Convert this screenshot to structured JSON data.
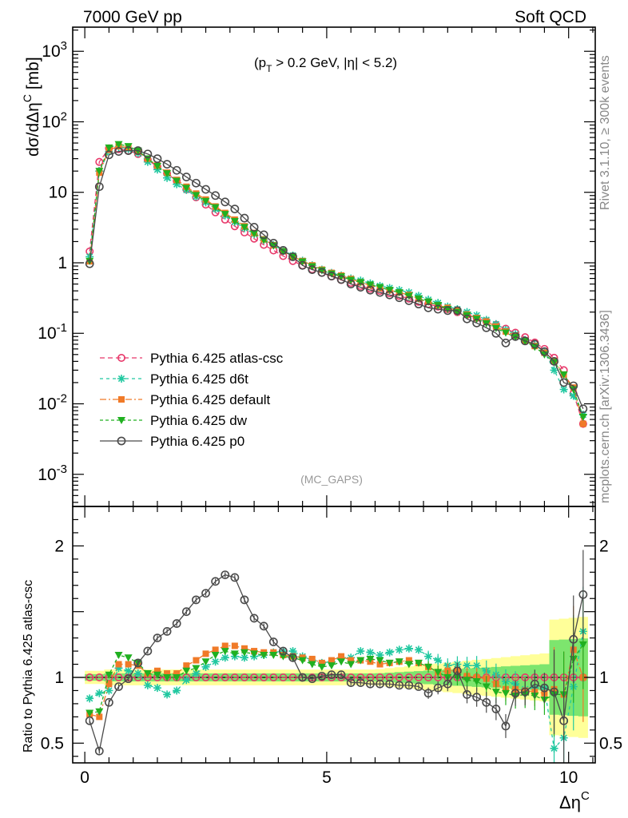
{
  "header": {
    "left": "7000 GeV pp",
    "right": "Soft QCD",
    "cuts_main": "(p",
    "cuts_sub": "T",
    "cuts_rest": " > 0.2 GeV, |η| < 5.2)",
    "analysis": "(MC_GAPS)",
    "side_top": "Rivet 3.1.10, ≥ 300k events",
    "side_bottom": "mcplots.cern.ch [arXiv:1306.3436]"
  },
  "colors": {
    "atlas_csc": "#e8386a",
    "d6t": "#20c8a0",
    "default": "#f07a28",
    "dw": "#20b020",
    "p0": "#4a4a4a",
    "band_yellow": "#ffff99",
    "band_green": "#66e066"
  },
  "chart_data": {
    "type": "line",
    "x_label": "Δη",
    "x_label_sup": "C",
    "xlim": [
      -0.25,
      10.55
    ],
    "x_ticks": [
      "0",
      "5",
      "10"
    ],
    "main": {
      "ylabel": "dσ/dΔη",
      "ylabel_sup": "C",
      "ylabel_unit": " [mb]",
      "yscale": "log",
      "ylim": [
        0.00035,
        2200
      ],
      "y_ticks": [
        "10",
        "10",
        "10",
        "1",
        "10",
        "10",
        "10"
      ],
      "y_tick_exps": [
        "3",
        "2",
        "",
        "",
        "-1",
        "-2",
        "-3"
      ]
    },
    "ratio": {
      "ylabel": "Ratio to Pythia 6.425 atlas-csc",
      "ylim": [
        0.35,
        2.3
      ],
      "y_ticks": [
        "0.5",
        "1",
        "2"
      ]
    },
    "x": [
      0.1,
      0.3,
      0.5,
      0.7,
      0.9,
      1.1,
      1.3,
      1.5,
      1.7,
      1.9,
      2.1,
      2.3,
      2.5,
      2.7,
      2.9,
      3.1,
      3.3,
      3.5,
      3.7,
      3.9,
      4.1,
      4.3,
      4.5,
      4.7,
      4.9,
      5.1,
      5.3,
      5.5,
      5.7,
      5.9,
      6.1,
      6.3,
      6.5,
      6.7,
      6.9,
      7.1,
      7.3,
      7.5,
      7.7,
      7.9,
      8.1,
      8.3,
      8.5,
      8.7,
      8.9,
      9.1,
      9.3,
      9.5,
      9.7,
      9.9,
      10.1,
      10.3
    ],
    "series": [
      {
        "name": "Pythia 6.425 atlas-csc",
        "key": "atlas_csc",
        "marker": "circle",
        "dash": "6,4",
        "values": [
          1.45,
          27,
          42,
          41,
          39,
          35,
          29,
          23,
          18.5,
          14.5,
          11,
          8.5,
          6.7,
          5.2,
          4.1,
          3.3,
          2.7,
          2.2,
          1.8,
          1.5,
          1.25,
          1.06,
          0.92,
          0.81,
          0.72,
          0.64,
          0.57,
          0.52,
          0.47,
          0.43,
          0.4,
          0.37,
          0.34,
          0.31,
          0.28,
          0.26,
          0.24,
          0.22,
          0.2,
          0.183,
          0.165,
          0.148,
          0.132,
          0.116,
          0.102,
          0.088,
          0.074,
          0.06,
          0.045,
          0.03,
          0.014,
          0.0052
        ]
      },
      {
        "name": "Pythia 6.425 d6t",
        "key": "d6t",
        "marker": "star",
        "dash": "4,4",
        "values": [
          1.22,
          20,
          38,
          44,
          41,
          36,
          27,
          21,
          16,
          13,
          10.8,
          8.7,
          7.2,
          5.8,
          4.7,
          3.8,
          3.1,
          2.55,
          2.1,
          1.78,
          1.5,
          1.27,
          1.07,
          0.92,
          0.8,
          0.72,
          0.66,
          0.6,
          0.56,
          0.51,
          0.47,
          0.44,
          0.41,
          0.38,
          0.34,
          0.3,
          0.27,
          0.24,
          0.22,
          0.2,
          0.18,
          0.155,
          0.135,
          0.112,
          0.097,
          0.08,
          0.068,
          0.055,
          0.03,
          0.016,
          0.013,
          0.007
        ]
      },
      {
        "name": "Pythia 6.425 default",
        "key": "default",
        "marker": "square",
        "dash": "8,3,2,3",
        "values": [
          1.05,
          19,
          40,
          45,
          43,
          38,
          30,
          24,
          19,
          15,
          12,
          9.6,
          7.9,
          6.3,
          5.1,
          4.1,
          3.3,
          2.65,
          2.15,
          1.78,
          1.46,
          1.23,
          1.06,
          0.92,
          0.8,
          0.72,
          0.66,
          0.59,
          0.53,
          0.48,
          0.44,
          0.41,
          0.38,
          0.35,
          0.31,
          0.28,
          0.25,
          0.23,
          0.21,
          0.185,
          0.165,
          0.147,
          0.125,
          0.106,
          0.093,
          0.079,
          0.066,
          0.053,
          0.041,
          0.026,
          0.017,
          0.0052
        ]
      },
      {
        "name": "Pythia 6.425 dw",
        "key": "dw",
        "marker": "tri",
        "dash": "4,3",
        "values": [
          1.06,
          20,
          43,
          48,
          45,
          39,
          30,
          23.5,
          18.5,
          14.5,
          11.5,
          9.1,
          7.5,
          6.1,
          4.9,
          3.9,
          3.2,
          2.6,
          2.1,
          1.75,
          1.45,
          1.22,
          1.04,
          0.89,
          0.78,
          0.7,
          0.64,
          0.57,
          0.53,
          0.49,
          0.45,
          0.41,
          0.38,
          0.34,
          0.31,
          0.28,
          0.25,
          0.22,
          0.2,
          0.18,
          0.16,
          0.138,
          0.118,
          0.102,
          0.088,
          0.077,
          0.064,
          0.05,
          0.039,
          0.026,
          0.016,
          0.0065
        ]
      },
      {
        "name": "Pythia 6.425 p0",
        "key": "p0",
        "marker": "ocircle",
        "dash": "",
        "values": [
          0.97,
          12,
          34,
          38,
          39,
          39,
          35,
          30,
          25,
          20.5,
          16.5,
          13.5,
          11,
          9,
          7.3,
          5.8,
          4.3,
          3.2,
          2.5,
          1.9,
          1.5,
          1.22,
          0.92,
          0.8,
          0.73,
          0.65,
          0.58,
          0.5,
          0.45,
          0.41,
          0.38,
          0.35,
          0.32,
          0.29,
          0.26,
          0.23,
          0.22,
          0.21,
          0.21,
          0.16,
          0.14,
          0.12,
          0.1,
          0.073,
          0.09,
          0.078,
          0.07,
          0.055,
          0.04,
          0.02,
          0.018,
          0.0085
        ]
      }
    ],
    "ratios": {
      "atlas_csc": [
        1,
        1,
        1,
        1,
        1,
        1,
        1,
        1,
        1,
        1,
        1,
        1,
        1,
        1,
        1,
        1,
        1,
        1,
        1,
        1,
        1,
        1,
        1,
        1,
        1,
        1,
        1,
        1,
        1,
        1,
        1,
        1,
        1,
        1,
        1,
        1,
        1,
        1,
        1,
        1,
        1,
        1,
        1,
        1,
        1,
        1,
        1,
        1,
        1,
        1,
        1,
        1
      ],
      "d6t": [
        0.84,
        0.88,
        0.9,
        1.07,
        1.05,
        1.03,
        0.94,
        0.92,
        0.87,
        0.9,
        0.98,
        1.03,
        1.08,
        1.12,
        1.15,
        1.16,
        1.15,
        1.16,
        1.17,
        1.19,
        1.2,
        1.2,
        1.16,
        1.13,
        1.11,
        1.12,
        1.15,
        1.15,
        1.2,
        1.19,
        1.17,
        1.19,
        1.21,
        1.22,
        1.21,
        1.16,
        1.13,
        1.09,
        1.1,
        1.09,
        1.09,
        1.05,
        1.02,
        0.97,
        0.95,
        0.91,
        0.92,
        0.92,
        0.46,
        0.54,
        0.93,
        1.35
      ],
      "default": [
        0.72,
        0.7,
        0.95,
        1.1,
        1.1,
        1.09,
        1.03,
        1.05,
        1.03,
        1.03,
        1.09,
        1.13,
        1.18,
        1.21,
        1.24,
        1.24,
        1.22,
        1.2,
        1.19,
        1.19,
        1.17,
        1.16,
        1.15,
        1.14,
        1.11,
        1.13,
        1.16,
        1.13,
        1.13,
        1.12,
        1.1,
        1.11,
        1.12,
        1.13,
        1.11,
        1.08,
        1.04,
        1.05,
        1.05,
        1.01,
        1.0,
        0.99,
        0.95,
        0.91,
        0.91,
        0.9,
        0.89,
        0.88,
        0.91,
        0.87,
        1.21,
        1.0
      ],
      "dw": [
        0.73,
        0.74,
        1.02,
        1.17,
        1.15,
        1.11,
        1.03,
        1.02,
        1.0,
        1.0,
        1.05,
        1.07,
        1.12,
        1.17,
        1.2,
        1.18,
        1.19,
        1.18,
        1.17,
        1.17,
        1.16,
        1.15,
        1.13,
        1.1,
        1.08,
        1.09,
        1.12,
        1.1,
        1.13,
        1.14,
        1.13,
        1.11,
        1.12,
        1.1,
        1.11,
        1.08,
        1.04,
        1.0,
        1.0,
        0.98,
        0.97,
        0.93,
        0.89,
        0.88,
        0.86,
        0.87,
        0.86,
        0.83,
        0.87,
        0.87,
        1.14,
        1.25
      ],
      "p0": [
        0.67,
        0.44,
        0.81,
        0.93,
        0.99,
        1.11,
        1.2,
        1.3,
        1.35,
        1.41,
        1.5,
        1.59,
        1.64,
        1.73,
        1.78,
        1.76,
        1.59,
        1.45,
        1.39,
        1.27,
        1.2,
        1.15,
        1.0,
        0.99,
        1.01,
        1.02,
        1.02,
        0.96,
        0.96,
        0.95,
        0.95,
        0.95,
        0.94,
        0.94,
        0.93,
        0.88,
        0.92,
        0.95,
        1.05,
        0.87,
        0.85,
        0.81,
        0.76,
        0.63,
        0.88,
        0.89,
        0.95,
        0.92,
        0.89,
        0.67,
        1.29,
        1.63
      ]
    },
    "legend_position": "lower-left"
  }
}
